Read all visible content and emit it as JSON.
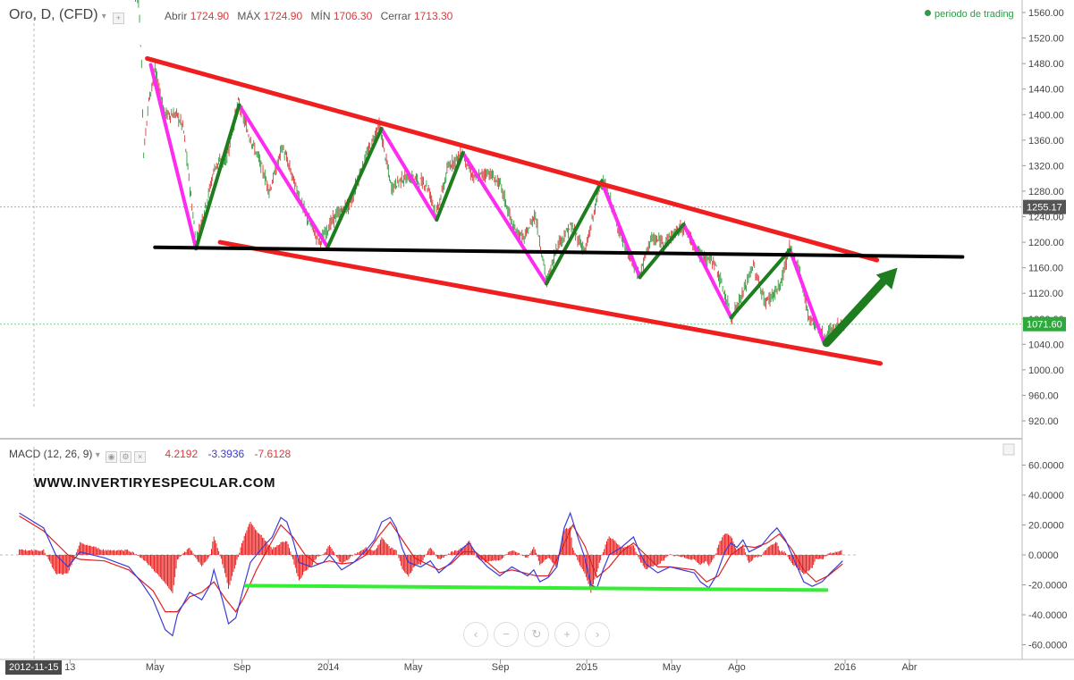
{
  "header": {
    "symbol": "Oro, D, (CFD)",
    "open_label": "Abrir",
    "open_value": "1724.90",
    "high_label": "MÁX",
    "high_value": "1724.90",
    "low_label": "MÍN",
    "low_value": "1706.30",
    "close_label": "Cerrar",
    "close_value": "1713.30",
    "trading_legend": "periodo de trading"
  },
  "macd_header": {
    "label": "MACD (12, 26, 9)",
    "value1": "4.2192",
    "value2": "-3.3936",
    "value3": "-7.6128"
  },
  "watermark": "WWW.INVERTIRYESPECULAR.COM",
  "date_chip": "2012-11-15",
  "nav_buttons": [
    "‹",
    "−",
    "↻",
    "+",
    "›"
  ],
  "colors": {
    "resistance": "#f01f1f",
    "support_black": "#000000",
    "up_leg": "#1e7d1e",
    "down_leg": "#ff2bf0",
    "macd_line": "#3c3cd8",
    "signal_line": "#e02020",
    "macd_support": "#33ee33",
    "candle_up": "#2f9e3f",
    "candle_down": "#d93a3a"
  },
  "chart_data": [
    {
      "type": "line",
      "subtype": "candlestick",
      "y_axis": {
        "ticks": [
          1560,
          1520,
          1480,
          1440,
          1400,
          1360,
          1320,
          1280,
          1240,
          1200,
          1160,
          1120,
          1080,
          1040,
          1000,
          960,
          920
        ],
        "ylim": [
          895,
          1575
        ],
        "side": "right"
      },
      "x_axis": {
        "tick_labels": [
          "13",
          "May",
          "Sep",
          "2014",
          "May",
          "Sep",
          "2015",
          "May",
          "Ago",
          "2016",
          "Abr"
        ]
      },
      "price_labels": [
        {
          "value": 1255.17,
          "text": "1255.17",
          "style": "grey"
        },
        {
          "value": 1071.6,
          "text": "1071.60",
          "style": "green"
        }
      ],
      "price_path": [
        [
          "2013-03-01",
          1600
        ],
        [
          "2013-04-01",
          1590
        ],
        [
          "2013-04-08",
          1580
        ],
        [
          "2013-04-12",
          1480
        ],
        [
          "2013-04-15",
          1340
        ],
        [
          "2013-04-22",
          1420
        ],
        [
          "2013-05-01",
          1470
        ],
        [
          "2013-05-15",
          1400
        ],
        [
          "2013-06-01",
          1400
        ],
        [
          "2013-06-10",
          1380
        ],
        [
          "2013-06-20",
          1280
        ],
        [
          "2013-06-28",
          1200
        ],
        [
          "2013-07-10",
          1250
        ],
        [
          "2013-07-25",
          1320
        ],
        [
          "2013-08-10",
          1330
        ],
        [
          "2013-08-27",
          1420
        ],
        [
          "2013-09-10",
          1370
        ],
        [
          "2013-09-25",
          1330
        ],
        [
          "2013-10-10",
          1280
        ],
        [
          "2013-10-28",
          1350
        ],
        [
          "2013-11-15",
          1290
        ],
        [
          "2013-12-01",
          1240
        ],
        [
          "2013-12-20",
          1200
        ],
        [
          "2014-01-10",
          1240
        ],
        [
          "2014-02-01",
          1260
        ],
        [
          "2014-02-15",
          1310
        ],
        [
          "2014-03-14",
          1385
        ],
        [
          "2014-03-31",
          1285
        ],
        [
          "2014-04-15",
          1300
        ],
        [
          "2014-05-01",
          1300
        ],
        [
          "2014-05-20",
          1290
        ],
        [
          "2014-06-03",
          1245
        ],
        [
          "2014-06-20",
          1320
        ],
        [
          "2014-07-10",
          1340
        ],
        [
          "2014-07-25",
          1300
        ],
        [
          "2014-08-15",
          1310
        ],
        [
          "2014-09-01",
          1290
        ],
        [
          "2014-09-20",
          1220
        ],
        [
          "2014-10-05",
          1205
        ],
        [
          "2014-10-20",
          1245
        ],
        [
          "2014-11-06",
          1135
        ],
        [
          "2014-11-20",
          1195
        ],
        [
          "2014-12-10",
          1225
        ],
        [
          "2014-12-30",
          1185
        ],
        [
          "2015-01-15",
          1265
        ],
        [
          "2015-01-22",
          1300
        ],
        [
          "2015-02-05",
          1260
        ],
        [
          "2015-02-20",
          1205
        ],
        [
          "2015-03-10",
          1160
        ],
        [
          "2015-03-17",
          1148
        ],
        [
          "2015-04-01",
          1205
        ],
        [
          "2015-04-20",
          1200
        ],
        [
          "2015-05-18",
          1225
        ],
        [
          "2015-06-10",
          1180
        ],
        [
          "2015-06-30",
          1170
        ],
        [
          "2015-07-20",
          1100
        ],
        [
          "2015-07-24",
          1080
        ],
        [
          "2015-08-10",
          1120
        ],
        [
          "2015-08-24",
          1165
        ],
        [
          "2015-09-10",
          1105
        ],
        [
          "2015-10-01",
          1130
        ],
        [
          "2015-10-14",
          1190
        ],
        [
          "2015-10-28",
          1160
        ],
        [
          "2015-11-10",
          1085
        ],
        [
          "2015-11-25",
          1065
        ],
        [
          "2015-12-03",
          1050
        ],
        [
          "2015-12-15",
          1065
        ],
        [
          "2015-12-31",
          1071.6
        ]
      ],
      "annotations": {
        "resistance_line": [
          [
            "2013-04-20",
            1488
          ],
          [
            "2016-02-15",
            1172
          ]
        ],
        "lower_channel_line": [
          [
            "2013-08-01",
            1200
          ],
          [
            "2016-02-20",
            1010
          ]
        ],
        "support_line": [
          [
            "2013-05-01",
            1192
          ],
          [
            "2016-06-15",
            1177
          ]
        ],
        "down_legs": [
          [
            [
              "2013-04-25",
              1478
            ],
            [
              "2013-06-28",
              1190
            ]
          ],
          [
            [
              "2013-08-28",
              1415
            ],
            [
              "2013-12-31",
              1192
            ]
          ],
          [
            [
              "2014-03-17",
              1378
            ],
            [
              "2014-06-03",
              1235
            ]
          ],
          [
            [
              "2014-07-10",
              1340
            ],
            [
              "2014-11-05",
              1135
            ]
          ],
          [
            [
              "2015-01-22",
              1295
            ],
            [
              "2015-03-17",
              1145
            ]
          ],
          [
            [
              "2015-05-18",
              1228
            ],
            [
              "2015-07-24",
              1082
            ]
          ],
          [
            [
              "2015-10-15",
              1188
            ],
            [
              "2015-12-03",
              1040
            ]
          ]
        ],
        "up_legs": [
          [
            [
              "2013-06-28",
              1190
            ],
            [
              "2013-08-28",
              1415
            ]
          ],
          [
            [
              "2013-12-31",
              1192
            ],
            [
              "2014-03-17",
              1378
            ]
          ],
          [
            [
              "2014-06-03",
              1235
            ],
            [
              "2014-07-10",
              1340
            ]
          ],
          [
            [
              "2014-11-05",
              1135
            ],
            [
              "2015-01-22",
              1295
            ]
          ],
          [
            [
              "2015-03-17",
              1145
            ],
            [
              "2015-05-18",
              1228
            ]
          ],
          [
            [
              "2015-07-24",
              1082
            ],
            [
              "2015-10-15",
              1188
            ]
          ]
        ],
        "projection_arrow": [
          [
            "2015-12-06",
            1042
          ],
          [
            "2016-03-15",
            1160
          ]
        ]
      }
    },
    {
      "type": "line",
      "title": "MACD (12, 26, 9)",
      "y_axis": {
        "ticks": [
          60,
          40,
          20,
          0,
          -20,
          -40,
          -60
        ],
        "tick_labels": [
          "60.0000",
          "40.0000",
          "20.0000",
          "0.0000",
          "-20.0000",
          "-40.0000",
          "-60.0000"
        ],
        "ylim": [
          -65,
          68
        ],
        "side": "right"
      },
      "series": [
        {
          "values": [
            [
              1,
              28
            ],
            [
              3,
              18
            ],
            [
              4,
              0
            ],
            [
              5,
              -8
            ],
            [
              6,
              2
            ],
            [
              8,
              -2
            ],
            [
              10,
              -8
            ],
            [
              11,
              -18
            ],
            [
              12,
              -30
            ],
            [
              13,
              -50
            ],
            [
              13.6,
              -54
            ],
            [
              14,
              -40
            ],
            [
              15,
              -25
            ],
            [
              16,
              -30
            ],
            [
              16.7,
              -20
            ],
            [
              17,
              -10
            ],
            [
              17.7,
              -30
            ],
            [
              18.2,
              -46
            ],
            [
              18.8,
              -42
            ],
            [
              19.5,
              -20
            ],
            [
              20,
              -5
            ],
            [
              21,
              5
            ],
            [
              21.8,
              12
            ],
            [
              22.5,
              25
            ],
            [
              23,
              22
            ],
            [
              23.5,
              10
            ],
            [
              24,
              -5
            ],
            [
              25,
              -8
            ],
            [
              26,
              -5
            ],
            [
              26.5,
              0
            ],
            [
              27.5,
              -10
            ],
            [
              28.5,
              -5
            ],
            [
              29.5,
              3
            ],
            [
              30.2,
              10
            ],
            [
              30.8,
              22
            ],
            [
              31.5,
              25
            ],
            [
              32,
              18
            ],
            [
              32.5,
              4
            ],
            [
              33,
              -5
            ],
            [
              34,
              -8
            ],
            [
              34.8,
              -4
            ],
            [
              35.5,
              -12
            ],
            [
              36.5,
              -5
            ],
            [
              37.5,
              5
            ],
            [
              38,
              8
            ],
            [
              38.8,
              -2
            ],
            [
              39.5,
              -8
            ],
            [
              40.5,
              -14
            ],
            [
              41.5,
              -8
            ],
            [
              42.8,
              -14
            ],
            [
              43.3,
              -10
            ],
            [
              43.8,
              -18
            ],
            [
              44.5,
              -15
            ],
            [
              45.2,
              -8
            ],
            [
              45.8,
              18
            ],
            [
              46.3,
              28
            ],
            [
              47,
              10
            ],
            [
              47.5,
              -2
            ],
            [
              48,
              -20
            ],
            [
              48.5,
              -22
            ],
            [
              49,
              -10
            ],
            [
              49.5,
              0
            ],
            [
              50.5,
              5
            ],
            [
              51.5,
              12
            ],
            [
              52,
              2
            ],
            [
              52.5,
              -6
            ],
            [
              53.5,
              -12
            ],
            [
              54.5,
              -8
            ],
            [
              55.5,
              -10
            ],
            [
              56.5,
              -12
            ],
            [
              57,
              -18
            ],
            [
              57.7,
              -22
            ],
            [
              58.3,
              -14
            ],
            [
              59,
              2
            ],
            [
              59.5,
              8
            ],
            [
              60,
              5
            ],
            [
              60.5,
              10
            ],
            [
              61,
              2
            ],
            [
              62,
              6
            ],
            [
              62.8,
              14
            ],
            [
              63.3,
              18
            ],
            [
              64,
              10
            ],
            [
              64.8,
              -5
            ],
            [
              65.5,
              -18
            ],
            [
              66.2,
              -21
            ],
            [
              67,
              -18
            ],
            [
              67.7,
              -12
            ],
            [
              68.2,
              -8
            ],
            [
              68.7,
              -4
            ]
          ]
        },
        {
          "values": [
            [
              1,
              26
            ],
            [
              3,
              16
            ],
            [
              5,
              0
            ],
            [
              6,
              -3
            ],
            [
              8,
              -4
            ],
            [
              10,
              -10
            ],
            [
              12,
              -24
            ],
            [
              13,
              -38
            ],
            [
              14,
              -38
            ],
            [
              15,
              -28
            ],
            [
              16,
              -25
            ],
            [
              17,
              -18
            ],
            [
              18,
              -30
            ],
            [
              18.8,
              -38
            ],
            [
              19.5,
              -28
            ],
            [
              20.5,
              -10
            ],
            [
              21.5,
              5
            ],
            [
              22.5,
              20
            ],
            [
              23.5,
              12
            ],
            [
              24.5,
              0
            ],
            [
              25.5,
              -6
            ],
            [
              26.5,
              -4
            ],
            [
              27.5,
              -6
            ],
            [
              28.5,
              -5
            ],
            [
              29.5,
              0
            ],
            [
              30.5,
              12
            ],
            [
              31.5,
              22
            ],
            [
              32.5,
              10
            ],
            [
              33.5,
              -2
            ],
            [
              34.5,
              -6
            ],
            [
              35.5,
              -10
            ],
            [
              36.5,
              -6
            ],
            [
              37.5,
              2
            ],
            [
              38.5,
              2
            ],
            [
              39.5,
              -5
            ],
            [
              40.5,
              -12
            ],
            [
              41.5,
              -10
            ],
            [
              42.5,
              -12
            ],
            [
              43.5,
              -14
            ],
            [
              44.5,
              -14
            ],
            [
              45.5,
              2
            ],
            [
              46.5,
              20
            ],
            [
              47.5,
              6
            ],
            [
              48.5,
              -15
            ],
            [
              49.5,
              -8
            ],
            [
              50.5,
              2
            ],
            [
              51.5,
              8
            ],
            [
              52.5,
              0
            ],
            [
              53.5,
              -8
            ],
            [
              54.5,
              -8
            ],
            [
              55.5,
              -9
            ],
            [
              56.5,
              -10
            ],
            [
              57.5,
              -18
            ],
            [
              58.5,
              -14
            ],
            [
              59.5,
              0
            ],
            [
              60.5,
              6
            ],
            [
              61.5,
              5
            ],
            [
              62.5,
              8
            ],
            [
              63.5,
              14
            ],
            [
              64.5,
              4
            ],
            [
              65.5,
              -10
            ],
            [
              66.5,
              -18
            ],
            [
              67.5,
              -14
            ],
            [
              68.7,
              -6
            ]
          ]
        }
      ],
      "annotations": {
        "macd_support_line": [
          [
            19.5,
            -20.5
          ],
          [
            67.5,
            -23.5
          ]
        ]
      }
    }
  ]
}
